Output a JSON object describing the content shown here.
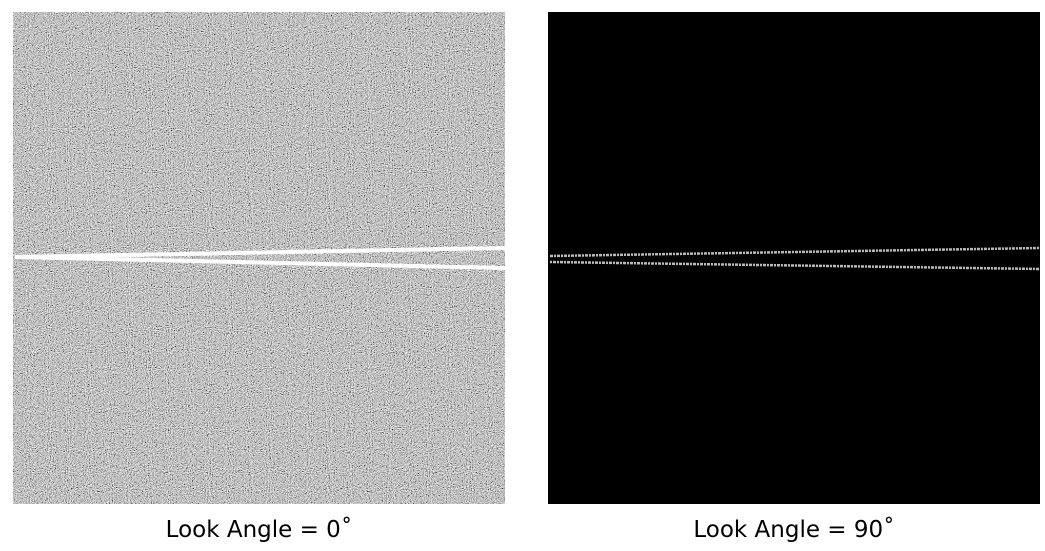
{
  "panels": [
    {
      "caption": "Look Angle = 0˚"
    },
    {
      "caption": "Look Angle = 90˚"
    }
  ]
}
